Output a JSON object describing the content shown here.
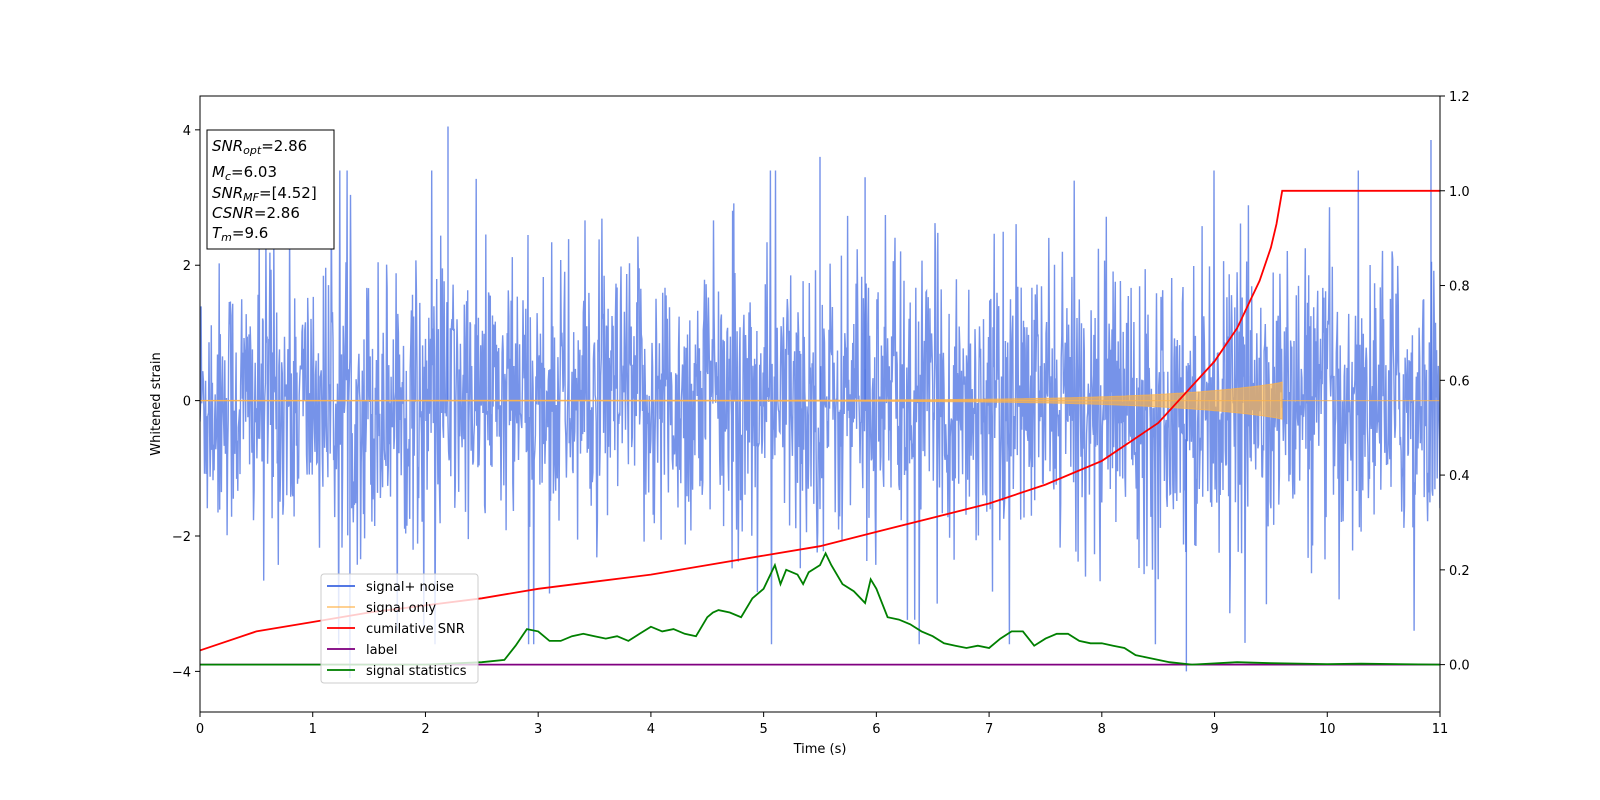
{
  "chart_data": {
    "type": "line",
    "xlabel": "Time (s)",
    "ylabel": "Whitened strain",
    "xlim": [
      0,
      11
    ],
    "ylim": [
      -4.6,
      4.5
    ],
    "ylim_right": [
      -0.1,
      1.2
    ],
    "x_ticks": [
      0,
      1,
      2,
      3,
      4,
      5,
      6,
      7,
      8,
      9,
      10,
      11
    ],
    "y_ticks": [
      -4,
      -2,
      0,
      2,
      4
    ],
    "y_ticks_right": [
      0.0,
      0.2,
      0.4,
      0.6,
      0.8,
      1.0,
      1.2
    ],
    "y_tick_labels": [
      "−4",
      "−2",
      "0",
      "2",
      "4"
    ],
    "y_tick_labels_right": [
      "0.0",
      "0.2",
      "0.4",
      "0.6",
      "0.8",
      "1.0",
      "1.2"
    ],
    "grid": false,
    "legend_position": "lower-left",
    "series": [
      {
        "name": "signal+ noise",
        "color": "#4169E1",
        "axis": "left",
        "style": "dense noise roughly within -3.5 to 4, peaks ~4.05 at t≈2.2 and ~3.85 at t≈10.9, dips ~-4.1 at t≈1.3 and ~-4.0 at t≈8.75"
      },
      {
        "name": "signal only",
        "color": "#FFB347",
        "axis": "left",
        "style": "chirp growing to ±0.25 at t≈9.6, zero after"
      },
      {
        "name": "cumilative SNR",
        "color": "#FF0000",
        "axis": "right",
        "x": [
          0,
          0.5,
          1,
          1.5,
          2,
          2.5,
          3,
          3.5,
          4,
          4.5,
          5,
          5.5,
          6,
          6.5,
          7,
          7.5,
          8,
          8.5,
          9,
          9.2,
          9.4,
          9.5,
          9.55,
          9.6,
          10,
          11
        ],
        "y": [
          0.03,
          0.07,
          0.09,
          0.11,
          0.125,
          0.14,
          0.16,
          0.175,
          0.19,
          0.21,
          0.23,
          0.25,
          0.28,
          0.31,
          0.34,
          0.38,
          0.43,
          0.51,
          0.64,
          0.71,
          0.81,
          0.88,
          0.93,
          1.0,
          1.0,
          1.0
        ]
      },
      {
        "name": "label",
        "color": "#800080",
        "axis": "right",
        "x": [
          0,
          11
        ],
        "y": [
          0.0,
          0.0
        ]
      },
      {
        "name": "signal statistics",
        "color": "#008000",
        "axis": "right",
        "x": [
          0,
          1,
          2,
          2.5,
          2.7,
          2.8,
          2.9,
          3.0,
          3.1,
          3.2,
          3.3,
          3.4,
          3.5,
          3.6,
          3.7,
          3.8,
          3.9,
          4.0,
          4.1,
          4.2,
          4.3,
          4.4,
          4.5,
          4.55,
          4.6,
          4.7,
          4.8,
          4.9,
          5.0,
          5.1,
          5.15,
          5.2,
          5.3,
          5.35,
          5.4,
          5.5,
          5.55,
          5.6,
          5.7,
          5.8,
          5.9,
          5.95,
          6.0,
          6.1,
          6.2,
          6.3,
          6.4,
          6.5,
          6.6,
          6.7,
          6.8,
          6.9,
          7.0,
          7.1,
          7.2,
          7.3,
          7.4,
          7.5,
          7.6,
          7.7,
          7.8,
          7.9,
          8.0,
          8.1,
          8.2,
          8.3,
          8.4,
          8.6,
          8.8,
          9.2,
          9.5,
          10,
          10.3,
          11
        ],
        "y": [
          0.0,
          0.0,
          0.0,
          0.005,
          0.01,
          0.04,
          0.075,
          0.07,
          0.05,
          0.05,
          0.06,
          0.065,
          0.06,
          0.055,
          0.06,
          0.05,
          0.065,
          0.08,
          0.07,
          0.075,
          0.065,
          0.06,
          0.1,
          0.11,
          0.115,
          0.11,
          0.1,
          0.14,
          0.16,
          0.21,
          0.17,
          0.2,
          0.19,
          0.17,
          0.195,
          0.21,
          0.235,
          0.21,
          0.17,
          0.155,
          0.13,
          0.18,
          0.16,
          0.1,
          0.095,
          0.085,
          0.07,
          0.06,
          0.045,
          0.04,
          0.035,
          0.04,
          0.035,
          0.055,
          0.07,
          0.07,
          0.04,
          0.055,
          0.065,
          0.065,
          0.05,
          0.045,
          0.045,
          0.04,
          0.035,
          0.02,
          0.015,
          0.005,
          0.0,
          0.005,
          0.003,
          0.001,
          0.002,
          0.0
        ]
      }
    ],
    "annotations": [
      {
        "base": "SNR",
        "sub": "opt",
        "value": "=2.86"
      },
      {
        "base": "M",
        "sub": "c",
        "value": "=6.03"
      },
      {
        "base": "SNR",
        "sub": "MF",
        "value": "=[4.52]"
      },
      {
        "base": "CSNR",
        "sub": "",
        "value": "=2.86"
      },
      {
        "base": "T",
        "sub": "m",
        "value": "=9.6"
      }
    ]
  }
}
